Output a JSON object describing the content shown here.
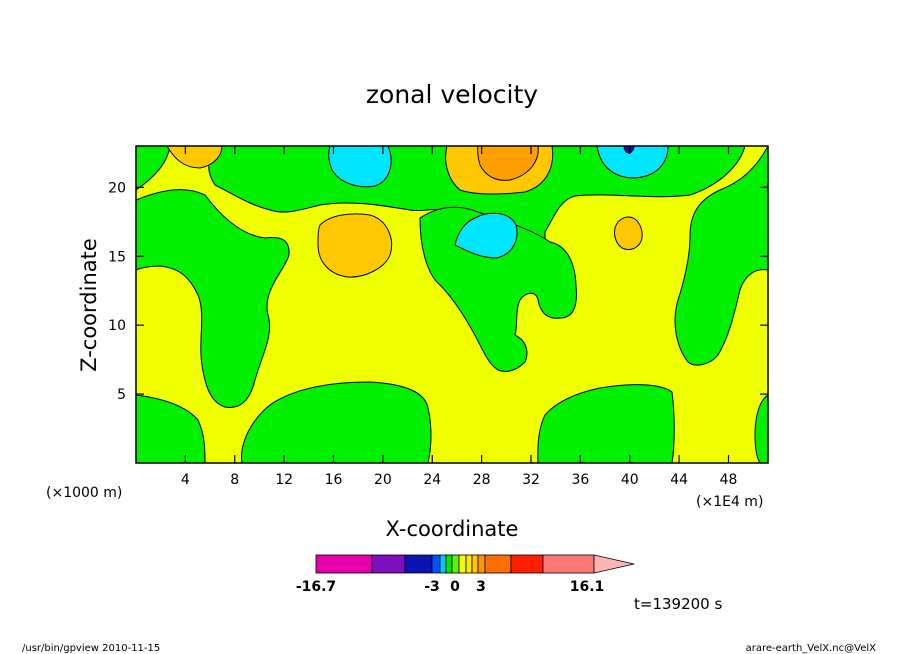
{
  "chart_data": {
    "type": "heatmap",
    "title": "zonal velocity",
    "xlabel": "X-coordinate",
    "ylabel": "Z-coordinate",
    "x_unit_label": "(×1E4 m)",
    "y_unit_label": "(×1000 m)",
    "xlim": [
      0,
      51.2
    ],
    "ylim": [
      0,
      23
    ],
    "x_ticks": [
      4,
      8,
      12,
      16,
      20,
      24,
      28,
      32,
      36,
      40,
      44,
      48
    ],
    "y_ticks": [
      5,
      10,
      15,
      20
    ],
    "colorbar": {
      "colors": [
        "#e600aa",
        "#7d0fbe",
        "#0a14b4",
        "#0050ff",
        "#00c8ff",
        "#00e600",
        "#64f000",
        "#f0ff00",
        "#ffe600",
        "#ffc800",
        "#ff9600",
        "#ff6e00",
        "#ff1e00",
        "#ff7878",
        "#ffb4b4"
      ],
      "tick_labels": [
        "-16.7",
        "-3",
        "0",
        "3",
        "16.1"
      ],
      "tick_values": [
        -16.7,
        -3,
        0,
        3,
        16.1
      ]
    },
    "time_label": "t=139200 s"
  },
  "footer": {
    "left": "/usr/bin/gpview   2010-11-15",
    "right": "arare-earth_VelX.nc@VelX"
  }
}
